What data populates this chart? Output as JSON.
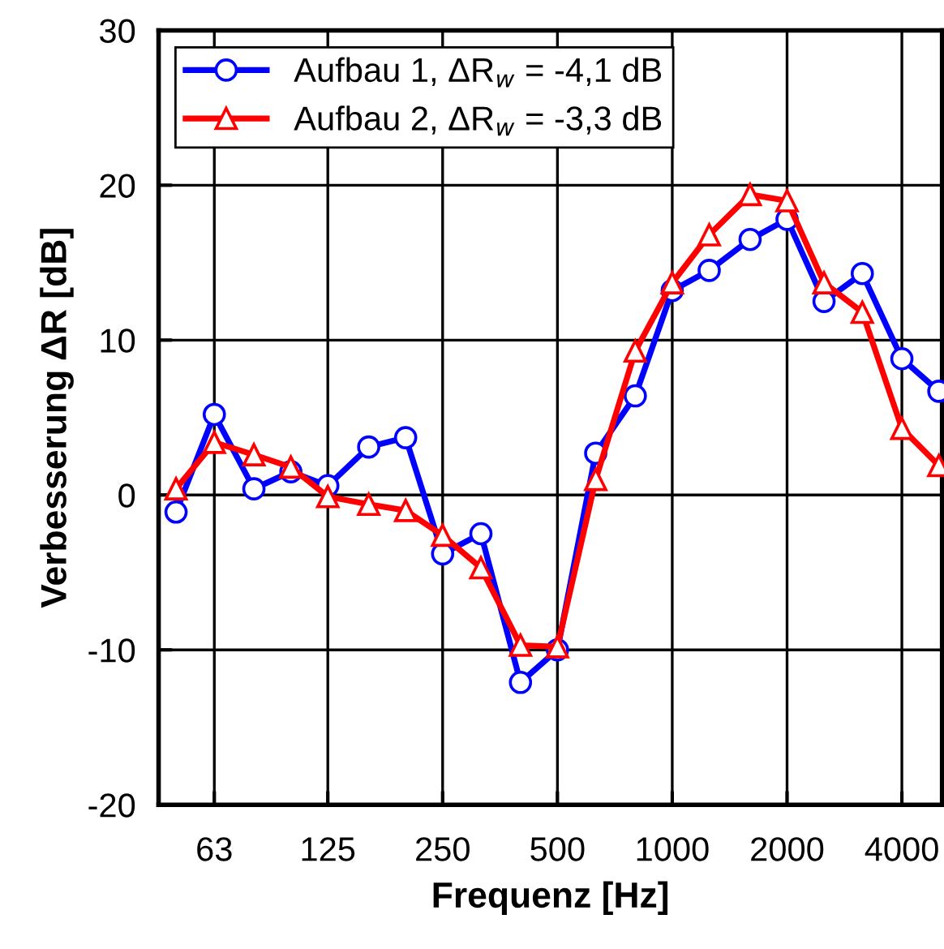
{
  "chart_data": {
    "type": "line",
    "xlabel": "Frequenz [Hz]",
    "ylabel": "Verbesserung ΔR [dB]",
    "x": [
      50,
      63,
      80,
      100,
      125,
      160,
      200,
      250,
      315,
      400,
      500,
      630,
      800,
      1000,
      1250,
      1600,
      2000,
      2500,
      3150,
      4000,
      5000
    ],
    "series": [
      {
        "name": "Aufbau 1, ΔR$_{w}$ = -4,1 dB",
        "color": "#0000ff",
        "marker": "circle",
        "values": [
          -1.1,
          5.2,
          0.4,
          1.5,
          0.6,
          3.1,
          3.7,
          -3.8,
          -2.5,
          -12.1,
          -10.0,
          2.7,
          6.4,
          13.2,
          14.5,
          16.5,
          17.8,
          12.5,
          14.3,
          8.8,
          6.7
        ]
      },
      {
        "name": "Aufbau 2, ΔR$_{w}$ = -3,3 dB",
        "color": "#ff0000",
        "marker": "triangle",
        "values": [
          0.4,
          3.4,
          2.6,
          1.8,
          -0.1,
          -0.6,
          -1.0,
          -2.6,
          -4.7,
          -9.7,
          -9.8,
          1.0,
          9.3,
          13.7,
          16.8,
          19.4,
          19.0,
          13.7,
          11.8,
          4.3,
          1.9
        ]
      }
    ],
    "log": "x",
    "xlim": [
      45,
      5100
    ],
    "xticks": [
      63,
      125,
      250,
      500,
      1000,
      2000,
      4000
    ],
    "ylim": [
      -20,
      30
    ],
    "yticks": [
      -20,
      -10,
      0,
      10,
      20,
      30
    ],
    "grid": true,
    "legend": "top left",
    "line_style": "solid"
  }
}
